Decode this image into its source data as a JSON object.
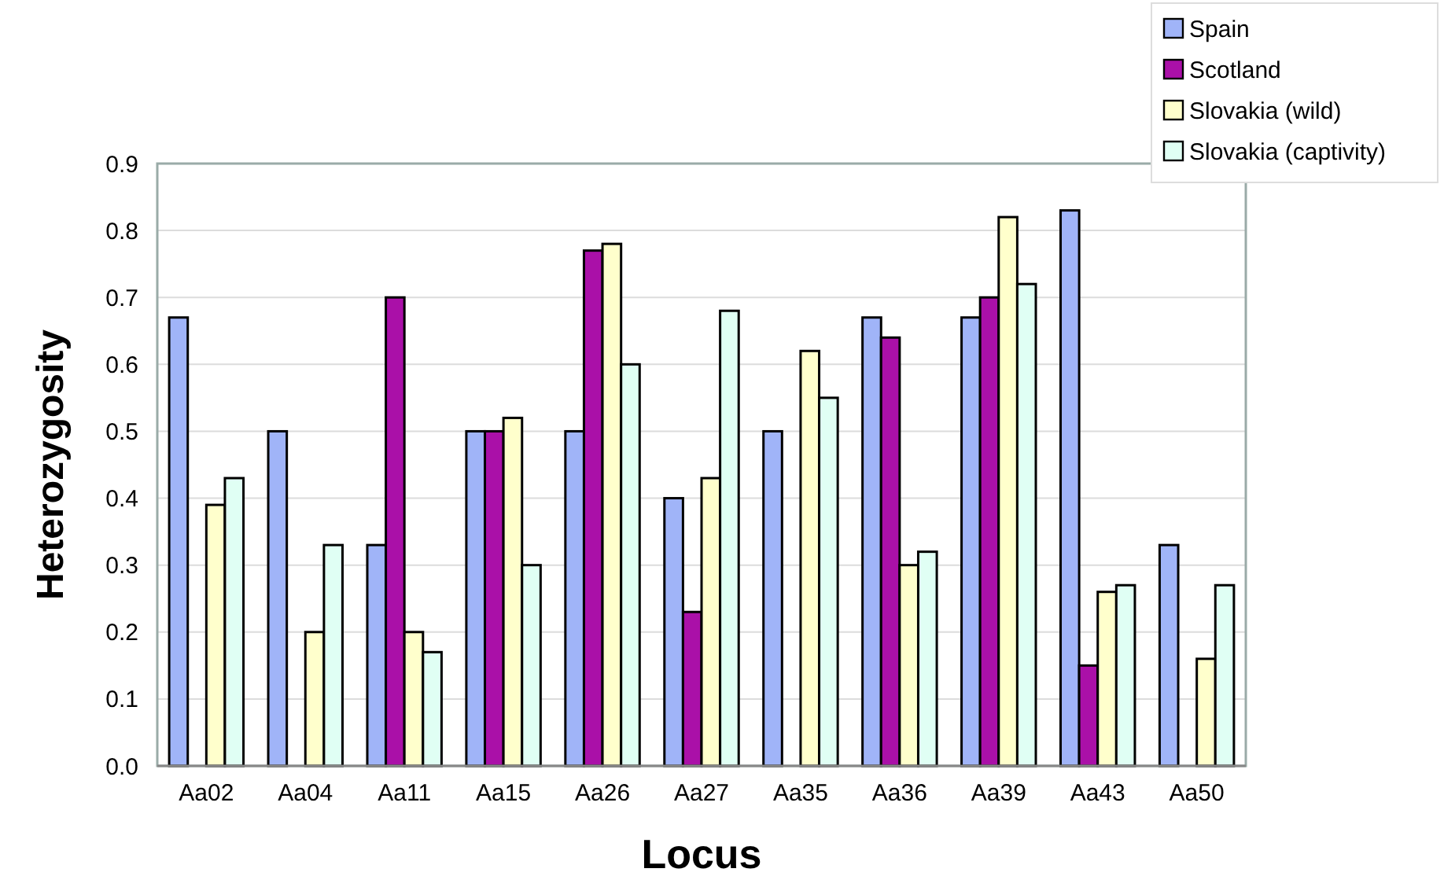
{
  "chart_data": {
    "type": "bar",
    "xlabel": "Locus",
    "ylabel": "Heterozygosity",
    "categories": [
      "Aa02",
      "Aa04",
      "Aa11",
      "Aa15",
      "Aa26",
      "Aa27",
      "Aa35",
      "Aa36",
      "Aa39",
      "Aa43",
      "Aa50"
    ],
    "series": [
      {
        "name": "Spain",
        "color": "#a0b4f8",
        "values": [
          0.67,
          0.5,
          0.33,
          0.5,
          0.5,
          0.4,
          0.5,
          0.67,
          0.67,
          0.83,
          0.33
        ]
      },
      {
        "name": "Scotland",
        "color": "#aa10a8",
        "values": [
          null,
          null,
          0.7,
          0.5,
          0.77,
          0.23,
          null,
          0.64,
          0.7,
          0.15,
          null
        ]
      },
      {
        "name": "Slovakia (wild)",
        "color": "#ffffcc",
        "values": [
          0.39,
          0.2,
          0.2,
          0.52,
          0.78,
          0.43,
          0.62,
          0.3,
          0.82,
          0.26,
          0.16
        ]
      },
      {
        "name": "Slovakia (captivity)",
        "color": "#e0fff4",
        "values": [
          0.43,
          0.33,
          0.17,
          0.3,
          0.6,
          0.68,
          0.55,
          0.32,
          0.72,
          0.27,
          0.27
        ]
      }
    ],
    "ylim": [
      0,
      0.9
    ],
    "yticks": [
      {
        "value": 0,
        "label": "0.0"
      },
      0.1,
      0.2,
      0.3,
      0.4,
      0.5,
      0.6,
      0.7,
      0.8,
      0.9
    ],
    "grid": "y",
    "legend": "top right"
  }
}
